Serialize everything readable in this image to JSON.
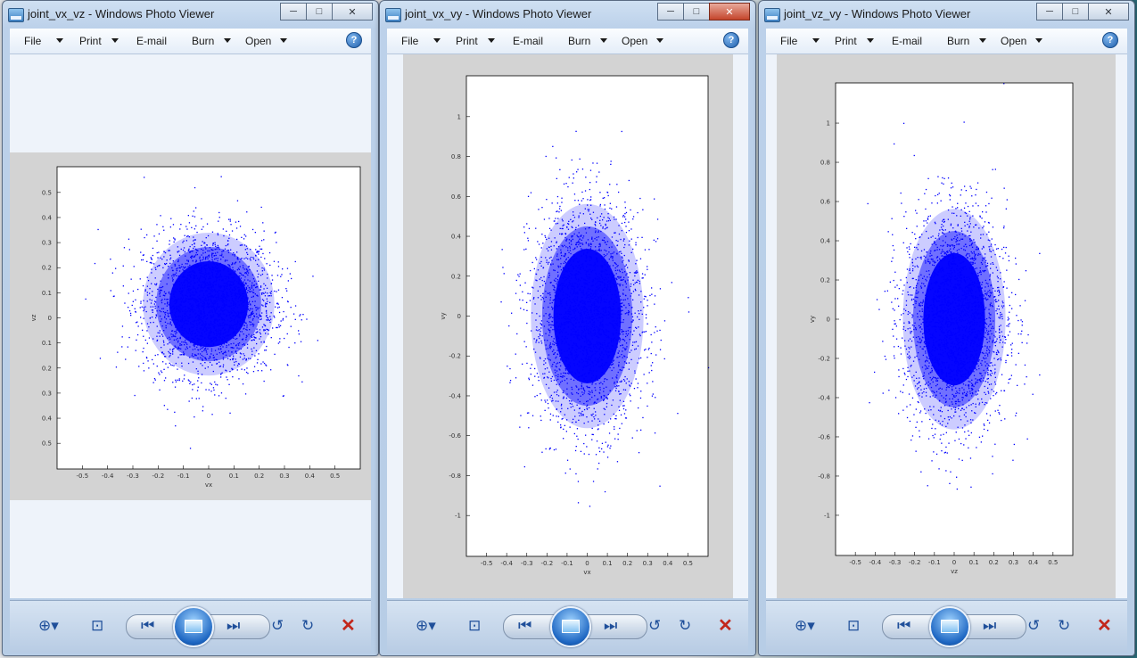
{
  "menu_labels": {
    "file": "File",
    "print": "Print",
    "email": "E-mail",
    "burn": "Burn",
    "open": "Open"
  },
  "caption_buttons": {
    "minimize": "─",
    "maximize": "□",
    "close": "✕"
  },
  "toolbar_icons": [
    "zoom-icon",
    "actual-size-icon",
    "previous-icon",
    "slideshow-icon",
    "next-icon",
    "rotate-counterclockwise-icon",
    "rotate-clockwise-icon",
    "delete-icon"
  ],
  "colors": {
    "scatter": "#0000ff",
    "delete": "#c2261b"
  },
  "windows": [
    {
      "title": "joint_vx_vz - Windows Photo Viewer",
      "chart_data": {
        "type": "scatter",
        "xlabel": "vx",
        "ylabel": "vz",
        "xlim": [
          -0.6,
          0.6
        ],
        "ylim": [
          -0.6,
          0.5
        ],
        "xticks": [
          "-0.5",
          "-0.4",
          "-0.3",
          "-0.2",
          "-0.1",
          "0",
          "0.1",
          "0.2",
          "0.3",
          "0.4",
          "0.5"
        ],
        "yticks": [
          "0.5",
          "0.4",
          "0.3",
          "0.2",
          "0.1",
          "0",
          "0.1",
          "0.2",
          "0.3",
          "0.4",
          "0.5"
        ],
        "distribution": {
          "center": [
            0.0,
            0.0
          ],
          "spread": [
            0.13,
            0.13
          ]
        }
      }
    },
    {
      "title": "joint_vx_vy - Windows Photo Viewer",
      "chart_data": {
        "type": "scatter",
        "xlabel": "vx",
        "ylabel": "vy",
        "xlim": [
          -0.6,
          0.6
        ],
        "ylim": [
          -1.2,
          1.2
        ],
        "xticks": [
          "-0.5",
          "-0.4",
          "-0.3",
          "-0.2",
          "-0.1",
          "0",
          "0.1",
          "0.2",
          "0.3",
          "0.4",
          "0.5"
        ],
        "yticks": [
          "1",
          "0.8",
          "0.6",
          "0.4",
          "0.2",
          "0",
          "-0.2",
          "-0.4",
          "-0.6",
          "-0.8",
          "-1"
        ],
        "distribution": {
          "center": [
            0.0,
            0.0
          ],
          "spread": [
            0.14,
            0.28
          ]
        }
      }
    },
    {
      "title": "joint_vz_vy - Windows Photo Viewer",
      "chart_data": {
        "type": "scatter",
        "xlabel": "vz",
        "ylabel": "vy",
        "xlim": [
          -0.6,
          0.6
        ],
        "ylim": [
          -1.2,
          1.2
        ],
        "xticks": [
          "-0.5",
          "-0.4",
          "-0.3",
          "-0.2",
          "-0.1",
          "0",
          "0.1",
          "0.2",
          "0.3",
          "0.4",
          "0.5"
        ],
        "yticks": [
          "1",
          "0.8",
          "0.6",
          "0.4",
          "0.2",
          "0",
          "-0.2",
          "-0.4",
          "-0.6",
          "-0.8",
          "-1"
        ],
        "distribution": {
          "center": [
            0.0,
            0.0
          ],
          "spread": [
            0.13,
            0.28
          ]
        }
      }
    }
  ]
}
